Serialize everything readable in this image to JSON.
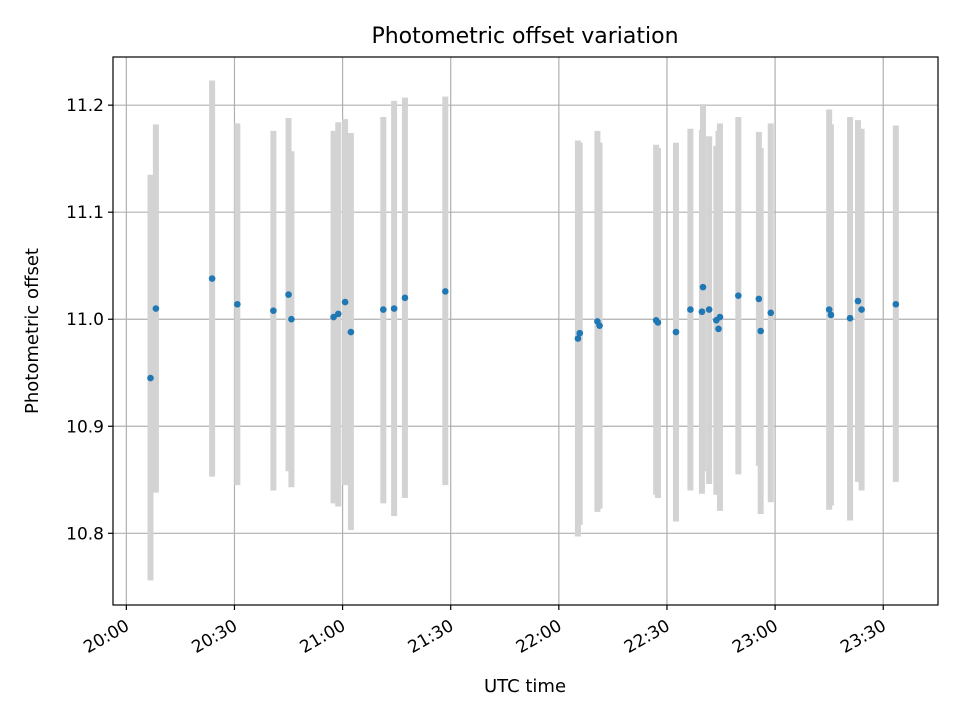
{
  "chart_data": {
    "type": "scatter",
    "title": "Photometric offset variation",
    "xlabel": "UTC time",
    "ylabel": "Photometric offset",
    "x_tick_labels": [
      "20:00",
      "20:30",
      "21:00",
      "21:30",
      "22:00",
      "22:30",
      "23:00",
      "23:30"
    ],
    "x_tick_minutes": [
      0,
      30,
      60,
      90,
      120,
      150,
      180,
      210
    ],
    "y_tick_labels": [
      "10.8",
      "10.9",
      "11.0",
      "11.1",
      "11.2"
    ],
    "y_ticks": [
      10.8,
      10.9,
      11.0,
      11.1,
      11.2
    ],
    "xlim_minutes": [
      -3.7,
      225.2
    ],
    "ylim": [
      10.733,
      11.245
    ],
    "grid": true,
    "colors": {
      "point": "#1f77b4",
      "errorbar": "#d3d3d3",
      "grid": "#b0b0b0"
    },
    "points": [
      {
        "t": 6.7,
        "y": 10.945,
        "lo": 10.756,
        "hi": 11.135
      },
      {
        "t": 8.2,
        "y": 11.01,
        "lo": 10.838,
        "hi": 11.182
      },
      {
        "t": 23.8,
        "y": 11.038,
        "lo": 10.853,
        "hi": 11.223
      },
      {
        "t": 30.8,
        "y": 11.014,
        "lo": 10.845,
        "hi": 11.183
      },
      {
        "t": 40.8,
        "y": 11.008,
        "lo": 10.84,
        "hi": 11.176
      },
      {
        "t": 45.0,
        "y": 11.023,
        "lo": 10.858,
        "hi": 11.188
      },
      {
        "t": 45.8,
        "y": 11.0,
        "lo": 10.843,
        "hi": 11.157
      },
      {
        "t": 57.5,
        "y": 11.002,
        "lo": 10.828,
        "hi": 11.176
      },
      {
        "t": 58.8,
        "y": 11.005,
        "lo": 10.825,
        "hi": 11.184
      },
      {
        "t": 60.7,
        "y": 11.016,
        "lo": 10.845,
        "hi": 11.187
      },
      {
        "t": 62.3,
        "y": 10.988,
        "lo": 10.803,
        "hi": 11.174
      },
      {
        "t": 71.3,
        "y": 11.009,
        "lo": 10.828,
        "hi": 11.189
      },
      {
        "t": 74.3,
        "y": 11.01,
        "lo": 10.816,
        "hi": 11.204
      },
      {
        "t": 77.3,
        "y": 11.02,
        "lo": 10.833,
        "hi": 11.207
      },
      {
        "t": 88.5,
        "y": 11.026,
        "lo": 10.845,
        "hi": 11.208
      },
      {
        "t": 125.3,
        "y": 10.982,
        "lo": 10.797,
        "hi": 11.167
      },
      {
        "t": 125.8,
        "y": 10.987,
        "lo": 10.808,
        "hi": 11.165
      },
      {
        "t": 130.7,
        "y": 10.998,
        "lo": 10.82,
        "hi": 11.176
      },
      {
        "t": 131.3,
        "y": 10.994,
        "lo": 10.823,
        "hi": 11.165
      },
      {
        "t": 147.0,
        "y": 10.999,
        "lo": 10.836,
        "hi": 11.163
      },
      {
        "t": 147.5,
        "y": 10.997,
        "lo": 10.833,
        "hi": 11.16
      },
      {
        "t": 152.5,
        "y": 10.988,
        "lo": 10.811,
        "hi": 11.165
      },
      {
        "t": 156.5,
        "y": 11.009,
        "lo": 10.84,
        "hi": 11.178
      },
      {
        "t": 159.7,
        "y": 11.007,
        "lo": 10.837,
        "hi": 11.177
      },
      {
        "t": 160.0,
        "y": 11.03,
        "lo": 10.858,
        "hi": 11.201
      },
      {
        "t": 161.7,
        "y": 11.009,
        "lo": 10.846,
        "hi": 11.171
      },
      {
        "t": 163.7,
        "y": 10.999,
        "lo": 10.836,
        "hi": 11.162
      },
      {
        "t": 164.3,
        "y": 10.991,
        "lo": 10.838,
        "hi": 11.176
      },
      {
        "t": 164.7,
        "y": 11.002,
        "lo": 10.821,
        "hi": 11.183
      },
      {
        "t": 169.8,
        "y": 11.022,
        "lo": 10.855,
        "hi": 11.189
      },
      {
        "t": 175.5,
        "y": 11.019,
        "lo": 10.863,
        "hi": 11.175
      },
      {
        "t": 176.0,
        "y": 10.989,
        "lo": 10.818,
        "hi": 11.16
      },
      {
        "t": 178.8,
        "y": 11.006,
        "lo": 10.829,
        "hi": 11.183
      },
      {
        "t": 195.0,
        "y": 11.009,
        "lo": 10.822,
        "hi": 11.196
      },
      {
        "t": 195.5,
        "y": 11.004,
        "lo": 10.826,
        "hi": 11.182
      },
      {
        "t": 200.8,
        "y": 11.001,
        "lo": 10.812,
        "hi": 11.189
      },
      {
        "t": 203.0,
        "y": 11.017,
        "lo": 10.848,
        "hi": 11.186
      },
      {
        "t": 204.0,
        "y": 11.009,
        "lo": 10.84,
        "hi": 11.178
      },
      {
        "t": 213.5,
        "y": 11.014,
        "lo": 10.848,
        "hi": 11.181
      }
    ]
  }
}
